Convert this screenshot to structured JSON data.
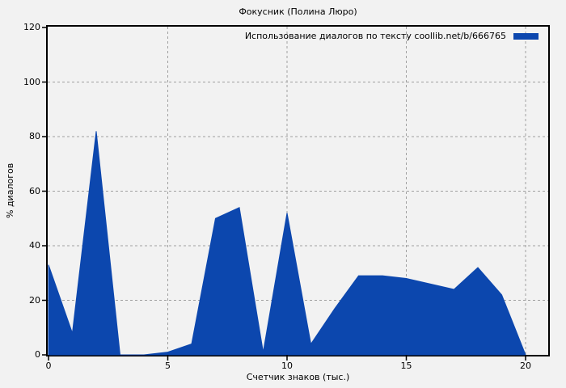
{
  "window": {
    "background": "#f2f2f2"
  },
  "chart_data": {
    "type": "area",
    "title": "Фокусник (Полина Люро)",
    "xlabel": "Счетчик знаков (тыс.)",
    "ylabel": "% диалогов",
    "x": [
      0,
      1,
      2,
      3,
      4,
      5,
      6,
      7,
      8,
      9,
      10,
      11,
      12,
      13,
      14,
      15,
      16,
      17,
      18,
      19,
      20
    ],
    "series": [
      {
        "name": "Использование диалогов по тексту coollib.net/b/666765",
        "values": [
          33,
          8,
          82,
          0,
          0,
          1,
          4,
          50,
          54,
          1,
          52,
          4,
          17,
          29,
          29,
          28,
          26,
          24,
          32,
          22,
          0
        ]
      }
    ],
    "xlim": [
      0,
      20
    ],
    "ylim": [
      0,
      120
    ],
    "xticks": [
      0,
      5,
      10,
      15,
      20
    ],
    "yticks": [
      0,
      20,
      40,
      60,
      80,
      100,
      120
    ],
    "grid": "dashed",
    "legend_position": "top-right-inside",
    "colors": {
      "fill": "#0c47ae",
      "axis": "#000000",
      "grid": "#a0a0a0",
      "text": "#000000",
      "background": "#f2f2f2"
    }
  }
}
